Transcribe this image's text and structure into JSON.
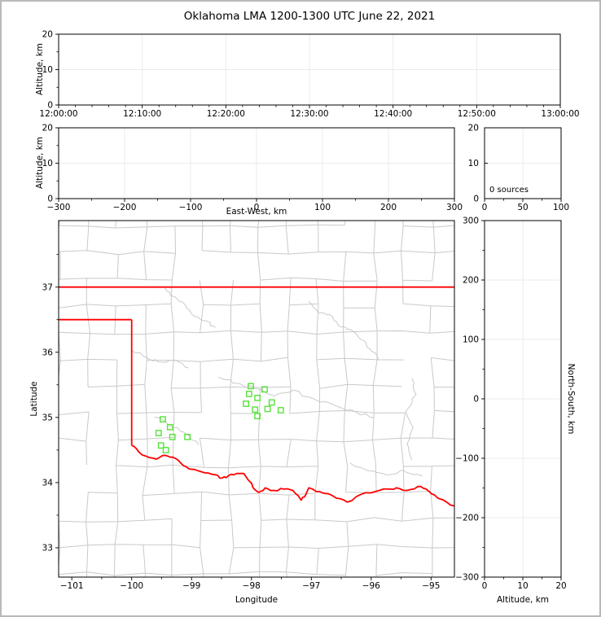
{
  "title": "Oklahoma LMA 1200-1300 UTC June 22, 2021",
  "colors": {
    "state_border": "#ff0000",
    "county_line": "#c9c9c9",
    "marker": "#58e23c",
    "gridline": "#ebebeb",
    "axis": "#000000",
    "frame": "#b9b9b9",
    "background": "#ffffff"
  },
  "panels": {
    "time_height": {
      "ylabel": "Altitude, km",
      "yticks": [
        "0",
        "10",
        "20"
      ],
      "xticks": [
        "12:00:00",
        "12:10:00",
        "12:20:00",
        "12:30:00",
        "12:40:00",
        "12:50:00",
        "13:00:00"
      ]
    },
    "ew_height": {
      "ylabel": "Altitude, km",
      "xlabel": "East-West, km",
      "yticks": [
        "0",
        "10",
        "20"
      ],
      "xticks": [
        "−300",
        "−200",
        "−100",
        "0",
        "100",
        "200",
        "300"
      ]
    },
    "alt_histogram": {
      "annotation": "0 sources",
      "yticks": [
        "0",
        "10",
        "20"
      ],
      "xticks": [
        "0",
        "50",
        "100"
      ]
    },
    "plan_view": {
      "xlabel": "Longitude",
      "ylabel": "Latitude",
      "xticks": [
        "−101",
        "−100",
        "−99",
        "−98",
        "−97",
        "−96",
        "−95"
      ],
      "yticks": [
        "33",
        "34",
        "35",
        "36",
        "37"
      ]
    },
    "ns_height": {
      "xlabel": "Altitude, km",
      "ylabel": "North-South, km",
      "yticks": [
        "300",
        "200",
        "100",
        "0",
        "−100",
        "−200",
        "−300"
      ],
      "xticks": [
        "0",
        "10",
        "20"
      ]
    }
  },
  "map": {
    "lon_range": [
      -101.22,
      -94.61
    ],
    "lat_range": [
      32.55,
      38.02
    ],
    "state_border": {
      "north": [
        [
          -101.22,
          37.0
        ],
        [
          -94.61,
          37.0
        ]
      ],
      "panhandle_south": [
        [
          -101.22,
          36.5
        ],
        [
          -100.0,
          36.5
        ]
      ],
      "west": [
        [
          -100.0,
          36.5
        ],
        [
          -100.0,
          34.57
        ]
      ],
      "red_river": [
        [
          -100.0,
          34.57
        ],
        [
          -99.88,
          34.47
        ],
        [
          -99.72,
          34.39
        ],
        [
          -99.59,
          34.36
        ],
        [
          -99.45,
          34.42
        ],
        [
          -99.31,
          34.39
        ],
        [
          -99.18,
          34.3
        ],
        [
          -99.04,
          34.21
        ],
        [
          -98.78,
          34.15
        ],
        [
          -98.6,
          34.12
        ],
        [
          -98.49,
          34.07
        ],
        [
          -98.39,
          34.1
        ],
        [
          -98.3,
          34.12
        ],
        [
          -98.13,
          34.14
        ],
        [
          -98.02,
          34.01
        ],
        [
          -97.95,
          33.9
        ],
        [
          -97.88,
          33.85
        ],
        [
          -97.77,
          33.92
        ],
        [
          -97.63,
          33.88
        ],
        [
          -97.45,
          33.9
        ],
        [
          -97.31,
          33.88
        ],
        [
          -97.17,
          33.73
        ],
        [
          -97.09,
          33.82
        ],
        [
          -97.04,
          33.92
        ],
        [
          -96.86,
          33.86
        ],
        [
          -96.72,
          33.83
        ],
        [
          -96.58,
          33.76
        ],
        [
          -96.4,
          33.7
        ],
        [
          -96.17,
          33.82
        ],
        [
          -95.94,
          33.86
        ],
        [
          -95.71,
          33.9
        ],
        [
          -95.58,
          33.92
        ],
        [
          -95.4,
          33.88
        ],
        [
          -95.22,
          33.94
        ],
        [
          -95.08,
          33.9
        ],
        [
          -94.94,
          33.81
        ],
        [
          -94.81,
          33.74
        ],
        [
          -94.61,
          33.64
        ]
      ]
    },
    "rivers": [
      [
        [
          -99.45,
          37.0
        ],
        [
          -99.28,
          36.85
        ],
        [
          -99.1,
          36.72
        ],
        [
          -98.95,
          36.55
        ],
        [
          -98.75,
          36.48
        ],
        [
          -98.6,
          36.38
        ]
      ],
      [
        [
          -97.05,
          36.78
        ],
        [
          -96.88,
          36.6
        ],
        [
          -96.7,
          36.58
        ],
        [
          -96.55,
          36.42
        ],
        [
          -96.35,
          36.35
        ],
        [
          -96.18,
          36.2
        ],
        [
          -96.02,
          36.05
        ],
        [
          -95.88,
          35.88
        ]
      ],
      [
        [
          -100.0,
          36.02
        ],
        [
          -99.75,
          35.92
        ],
        [
          -99.55,
          35.85
        ],
        [
          -99.3,
          35.88
        ],
        [
          -99.05,
          35.76
        ]
      ],
      [
        [
          -98.55,
          35.62
        ],
        [
          -98.2,
          35.52
        ],
        [
          -97.95,
          35.45
        ],
        [
          -97.62,
          35.33
        ],
        [
          -97.3,
          35.42
        ],
        [
          -96.95,
          35.28
        ],
        [
          -96.6,
          35.18
        ],
        [
          -96.25,
          35.08
        ],
        [
          -95.95,
          35.0
        ]
      ],
      [
        [
          -99.62,
          35.0
        ],
        [
          -99.42,
          34.92
        ],
        [
          -99.2,
          34.8
        ],
        [
          -99.02,
          34.7
        ],
        [
          -98.88,
          34.58
        ]
      ],
      [
        [
          -95.32,
          35.6
        ],
        [
          -95.25,
          35.35
        ],
        [
          -95.42,
          35.1
        ],
        [
          -95.3,
          34.85
        ],
        [
          -95.4,
          34.6
        ],
        [
          -95.32,
          34.35
        ]
      ],
      [
        [
          -96.35,
          34.3
        ],
        [
          -96.05,
          34.18
        ],
        [
          -95.75,
          34.12
        ],
        [
          -95.45,
          34.18
        ],
        [
          -95.15,
          34.1
        ]
      ]
    ],
    "counties": {
      "seed": 12,
      "col_step_deg": 0.48,
      "row_step_deg": 0.41,
      "jitter_deg": 0.09,
      "skip_prob": 0.22
    }
  },
  "chart_data": [
    {
      "id": "time_height",
      "type": "scatter",
      "title": "Oklahoma LMA 1200-1300 UTC June 22, 2021",
      "xlabel": "",
      "ylabel": "Altitude, km",
      "x_tick_times": [
        "12:00:00",
        "12:10:00",
        "12:20:00",
        "12:30:00",
        "12:40:00",
        "12:50:00",
        "13:00:00"
      ],
      "ylim": [
        0,
        20
      ],
      "points": []
    },
    {
      "id": "ew_height",
      "type": "scatter",
      "xlabel": "East-West, km",
      "ylabel": "Altitude, km",
      "xlim": [
        -300,
        300
      ],
      "ylim": [
        0,
        20
      ],
      "points": []
    },
    {
      "id": "alt_histogram",
      "type": "scatter",
      "annotation": "0 sources",
      "xlim": [
        0,
        100
      ],
      "ylim": [
        0,
        20
      ],
      "points": []
    },
    {
      "id": "plan_view",
      "type": "scatter",
      "xlabel": "Longitude",
      "ylabel": "Latitude",
      "xlim": [
        -101.22,
        -94.61
      ],
      "ylim": [
        32.55,
        38.02
      ],
      "series": [
        {
          "name": "lma-sources",
          "marker": "open-square",
          "color": "#58e23c",
          "points": [
            [
              -98.01,
              35.48
            ],
            [
              -97.78,
              35.43
            ],
            [
              -98.04,
              35.36
            ],
            [
              -97.9,
              35.3
            ],
            [
              -98.09,
              35.21
            ],
            [
              -97.66,
              35.23
            ],
            [
              -97.94,
              35.12
            ],
            [
              -97.73,
              35.13
            ],
            [
              -97.51,
              35.11
            ],
            [
              -97.9,
              35.02
            ],
            [
              -99.48,
              34.97
            ],
            [
              -99.36,
              34.85
            ],
            [
              -99.55,
              34.76
            ],
            [
              -99.32,
              34.7
            ],
            [
              -99.07,
              34.7
            ],
            [
              -99.51,
              34.57
            ],
            [
              -99.43,
              34.5
            ]
          ]
        }
      ]
    },
    {
      "id": "ns_height",
      "type": "scatter",
      "xlabel": "Altitude, km",
      "ylabel": "North-South, km",
      "xlim": [
        0,
        20
      ],
      "ylim": [
        -300,
        300
      ],
      "points": []
    }
  ]
}
